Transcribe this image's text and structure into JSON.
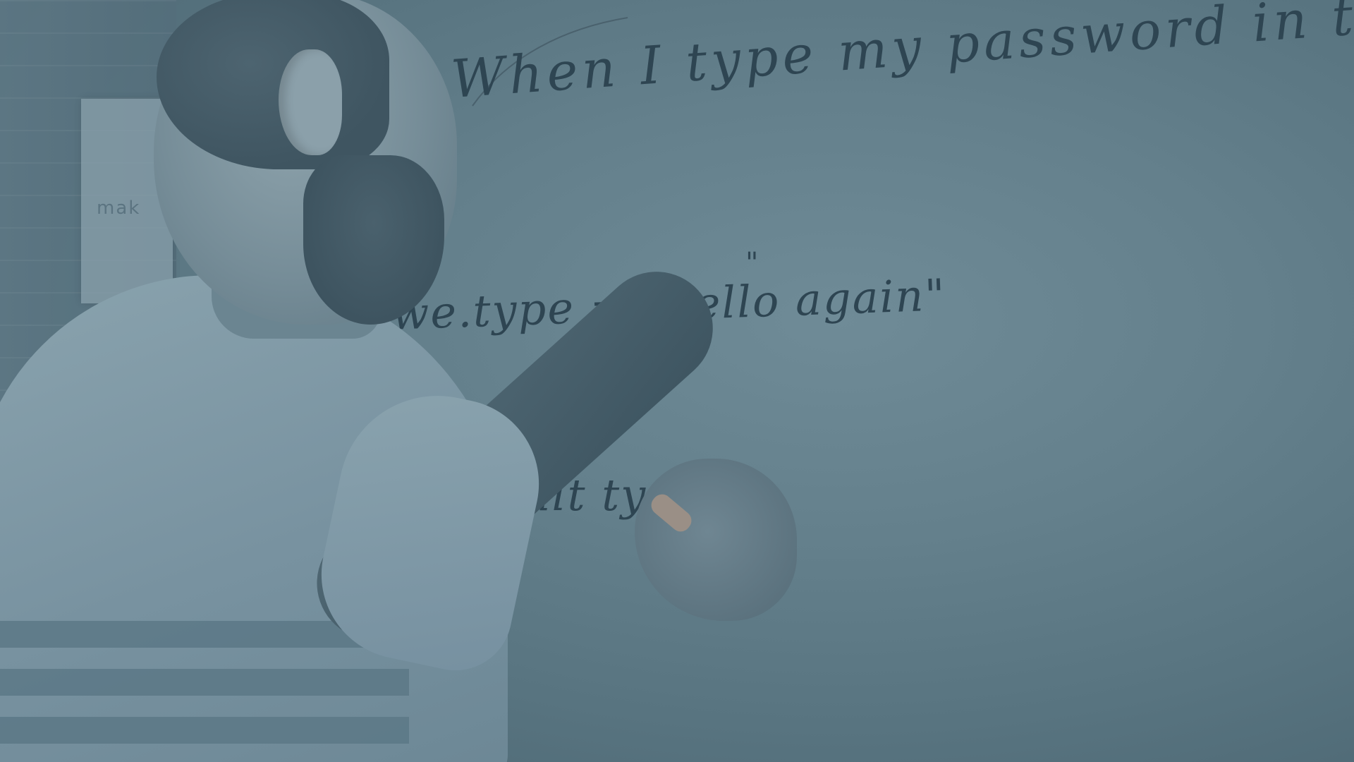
{
  "photo": {
    "description_tag": "whiteboard-photo"
  },
  "whiteboard": {
    "line_1": "When I type my password in the form",
    "line_2": "we.type = \"hello again\"",
    "line_3": "salt type\""
  },
  "paper": {
    "text": "mak"
  },
  "colors": {
    "overlay_tint": "#587480",
    "ink": "#2e4552"
  }
}
